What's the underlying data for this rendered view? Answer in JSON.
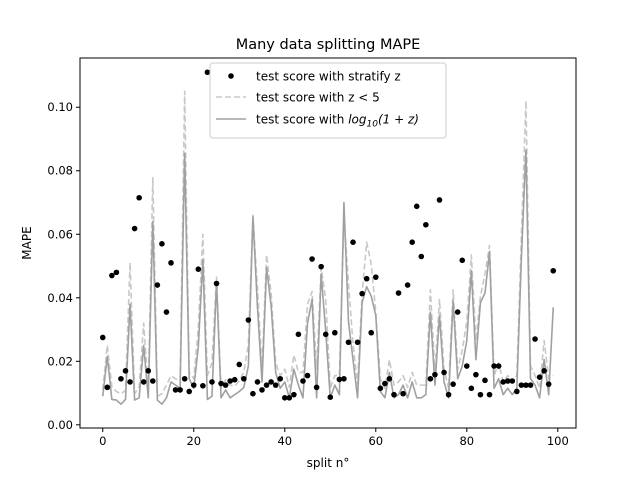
{
  "chart_data": {
    "type": "scatter",
    "title": "Many data splitting MAPE",
    "xlabel": "split n°",
    "ylabel": "MAPE",
    "xlim": [
      -5,
      104
    ],
    "ylim": [
      -0.001,
      0.1155
    ],
    "grid": false,
    "legend_placement": "top-center",
    "x_ticks": [
      0,
      20,
      40,
      60,
      80,
      100
    ],
    "x_tick_labels": [
      "0",
      "20",
      "40",
      "60",
      "80",
      "100"
    ],
    "y_ticks": [
      0.0,
      0.02,
      0.04,
      0.06,
      0.08,
      0.1
    ],
    "y_tick_labels": [
      "0.00",
      "0.02",
      "0.04",
      "0.06",
      "0.08",
      "0.10"
    ],
    "x": [
      0,
      1,
      2,
      3,
      4,
      5,
      6,
      7,
      8,
      9,
      10,
      11,
      12,
      13,
      14,
      15,
      16,
      17,
      18,
      19,
      20,
      21,
      22,
      23,
      24,
      25,
      26,
      27,
      28,
      29,
      30,
      31,
      32,
      33,
      34,
      35,
      36,
      37,
      38,
      39,
      40,
      41,
      42,
      43,
      44,
      45,
      46,
      47,
      48,
      49,
      50,
      51,
      52,
      53,
      54,
      55,
      56,
      57,
      58,
      59,
      60,
      61,
      62,
      63,
      64,
      65,
      66,
      67,
      68,
      69,
      70,
      71,
      72,
      73,
      74,
      75,
      76,
      77,
      78,
      79,
      80,
      81,
      82,
      83,
      84,
      85,
      86,
      87,
      88,
      89,
      90,
      91,
      92,
      93,
      94,
      95,
      96,
      97,
      98,
      99
    ],
    "series": [
      {
        "name": "test score with stratify z",
        "style": "scatter",
        "color": "#000000",
        "values": [
          0.0275,
          0.0118,
          0.047,
          0.048,
          0.0145,
          0.017,
          0.0135,
          0.0618,
          0.0715,
          0.0135,
          0.017,
          0.0138,
          0.044,
          0.057,
          0.0355,
          0.051,
          0.011,
          0.011,
          0.0145,
          0.0105,
          0.0125,
          0.049,
          0.0123,
          0.111,
          0.0135,
          0.0445,
          0.013,
          0.0125,
          0.0138,
          0.0142,
          0.019,
          0.0145,
          0.033,
          0.0098,
          0.0135,
          0.011,
          0.0125,
          0.0135,
          0.0125,
          0.0145,
          0.0085,
          0.0085,
          0.0095,
          0.0285,
          0.0138,
          0.0155,
          0.0522,
          0.0118,
          0.0498,
          0.0285,
          0.0087,
          0.029,
          0.0143,
          0.0145,
          0.026,
          0.0575,
          0.026,
          0.0413,
          0.046,
          0.029,
          0.0465,
          0.0115,
          0.013,
          0.0145,
          0.0095,
          0.0415,
          0.0098,
          0.044,
          0.0575,
          0.0688,
          0.053,
          0.063,
          0.0145,
          0.0158,
          0.0708,
          0.0165,
          0.0095,
          0.0128,
          0.0355,
          0.0518,
          0.0185,
          0.0115,
          0.0158,
          0.0095,
          0.014,
          0.0095,
          0.0185,
          0.0185,
          0.0135,
          0.0138,
          0.0138,
          0.0105,
          0.0125,
          0.0125,
          0.0125,
          0.027,
          0.015,
          0.017,
          0.0128,
          0.0485
        ]
      },
      {
        "name": "test score with z < 5",
        "style": "dashed-line",
        "color": "#c8c8c8",
        "values": [
          0.011,
          0.025,
          0.012,
          0.0105,
          0.0098,
          0.0108,
          0.051,
          0.0098,
          0.012,
          0.032,
          0.0105,
          0.078,
          0.009,
          0.0098,
          0.0125,
          0.0155,
          0.0145,
          0.0138,
          0.105,
          0.0165,
          0.0145,
          0.0305,
          0.06,
          0.0155,
          0.0195,
          0.0465,
          0.0115,
          0.0142,
          0.0125,
          0.0122,
          0.0138,
          0.0165,
          0.0255,
          0.066,
          0.043,
          0.018,
          0.0535,
          0.0415,
          0.0195,
          0.0155,
          0.0175,
          0.0118,
          0.022,
          0.0165,
          0.0165,
          0.038,
          0.042,
          0.0175,
          0.0495,
          0.0395,
          0.0115,
          0.0155,
          0.0155,
          0.0655,
          0.0445,
          0.0255,
          0.0128,
          0.0415,
          0.0575,
          0.0505,
          0.0355,
          0.0145,
          0.0115,
          0.0205,
          0.0125,
          0.0135,
          0.0155,
          0.0118,
          0.0165,
          0.0125,
          0.0125,
          0.0125,
          0.0425,
          0.0165,
          0.0395,
          0.0175,
          0.0115,
          0.0425,
          0.0175,
          0.0235,
          0.0325,
          0.0535,
          0.0265,
          0.0405,
          0.0475,
          0.0565,
          0.0155,
          0.0195,
          0.0135,
          0.0155,
          0.0135,
          0.0155,
          0.0595,
          0.102,
          0.0185,
          0.0155,
          0.0115,
          0.0265,
          0.0145,
          0.0155
        ]
      },
      {
        "name": "test score with log10(1+z)",
        "style": "solid-line",
        "color": "#a0a0a0",
        "values": [
          0.009,
          0.0215,
          0.008,
          0.0078,
          0.0065,
          0.008,
          0.038,
          0.0078,
          0.0085,
          0.025,
          0.0085,
          0.064,
          0.0078,
          0.0065,
          0.0085,
          0.0135,
          0.0125,
          0.0115,
          0.0855,
          0.0145,
          0.0115,
          0.0245,
          0.052,
          0.008,
          0.009,
          0.045,
          0.0085,
          0.011,
          0.0085,
          0.0095,
          0.0105,
          0.0118,
          0.0185,
          0.0655,
          0.037,
          0.0135,
          0.0495,
          0.0375,
          0.0165,
          0.0115,
          0.0135,
          0.0085,
          0.0175,
          0.0125,
          0.0085,
          0.032,
          0.0395,
          0.0085,
          0.0475,
          0.0295,
          0.0085,
          0.0125,
          0.0095,
          0.07,
          0.0325,
          0.0205,
          0.0085,
          0.0385,
          0.0435,
          0.0405,
          0.0345,
          0.0105,
          0.0085,
          0.0165,
          0.0085,
          0.0095,
          0.0125,
          0.0085,
          0.0135,
          0.0085,
          0.0085,
          0.0095,
          0.0355,
          0.0125,
          0.0345,
          0.0135,
          0.0085,
          0.039,
          0.0145,
          0.0185,
          0.0265,
          0.0485,
          0.0205,
          0.0385,
          0.0415,
          0.0545,
          0.0115,
          0.0145,
          0.0095,
          0.0115,
          0.0095,
          0.0115,
          0.0525,
          0.0865,
          0.0145,
          0.0125,
          0.0085,
          0.0205,
          0.0095,
          0.037
        ]
      }
    ],
    "legend_labels": {
      "stratify": "test score with stratify z",
      "z5": "test score with z < 5",
      "log_prefix": "test score with ",
      "log_math": "log",
      "log_sub": "10",
      "log_tail": "(1 + z)"
    }
  }
}
